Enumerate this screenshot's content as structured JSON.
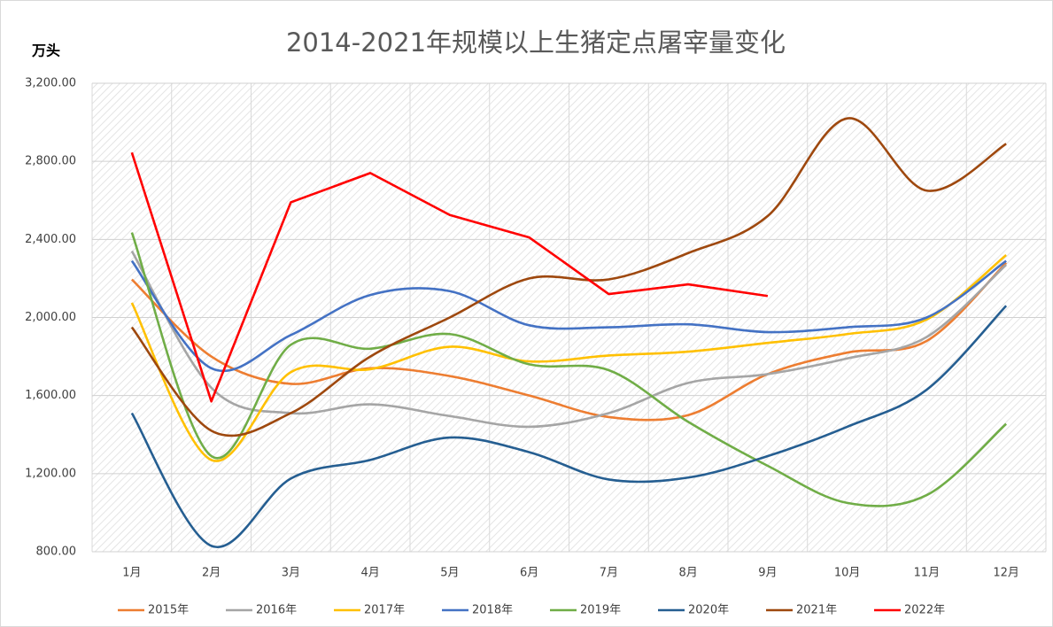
{
  "chart_data": {
    "type": "line",
    "title": "2014-2021年规模以上生猪定点屠宰量变化",
    "y_label": "万头",
    "categories": [
      "1月",
      "2月",
      "3月",
      "4月",
      "5月",
      "6月",
      "7月",
      "8月",
      "9月",
      "10月",
      "11月",
      "12月"
    ],
    "ylim": [
      800,
      3200
    ],
    "yticks": [
      {
        "value": 800,
        "label": "800.00"
      },
      {
        "value": 1200,
        "label": "1,200.00"
      },
      {
        "value": 1600,
        "label": "1,600.00"
      },
      {
        "value": 2000,
        "label": "2,000.00"
      },
      {
        "value": 2400,
        "label": "2,400.00"
      },
      {
        "value": 2800,
        "label": "2,800.00"
      },
      {
        "value": 3200,
        "label": "3,200.00"
      }
    ],
    "grid": true,
    "legend": "bottom",
    "series": [
      {
        "name": "2015年",
        "color": "#ed7d31",
        "smooth": true,
        "values": [
          2195,
          1800,
          1660,
          1740,
          1700,
          1600,
          1490,
          1500,
          1710,
          1820,
          1880,
          2280
        ]
      },
      {
        "name": "2016年",
        "color": "#a5a5a5",
        "smooth": true,
        "values": [
          2340,
          1640,
          1510,
          1555,
          1495,
          1440,
          1510,
          1665,
          1710,
          1790,
          1900,
          2270
        ]
      },
      {
        "name": "2017年",
        "color": "#ffc000",
        "smooth": true,
        "values": [
          2075,
          1270,
          1720,
          1735,
          1850,
          1775,
          1805,
          1825,
          1870,
          1915,
          1990,
          2320
        ]
      },
      {
        "name": "2018年",
        "color": "#4472c4",
        "smooth": true,
        "values": [
          2290,
          1740,
          1910,
          2115,
          2135,
          1960,
          1950,
          1965,
          1925,
          1950,
          2000,
          2290
        ]
      },
      {
        "name": "2019年",
        "color": "#70ad47",
        "smooth": true,
        "values": [
          2435,
          1290,
          1860,
          1840,
          1915,
          1760,
          1730,
          1465,
          1240,
          1050,
          1090,
          1455
        ]
      },
      {
        "name": "2020年",
        "color": "#255e91",
        "smooth": true,
        "values": [
          1510,
          830,
          1175,
          1270,
          1385,
          1310,
          1170,
          1180,
          1290,
          1440,
          1630,
          2060
        ]
      },
      {
        "name": "2021年",
        "color": "#9e480e",
        "smooth": true,
        "values": [
          1950,
          1420,
          1510,
          1800,
          2000,
          2200,
          2195,
          2330,
          2520,
          3020,
          2650,
          2890
        ]
      },
      {
        "name": "2022年",
        "color": "#ff0000",
        "smooth": false,
        "values": [
          2845,
          1570,
          2590,
          2740,
          2525,
          2410,
          2120,
          2170,
          2110,
          null,
          null,
          null
        ]
      }
    ]
  }
}
